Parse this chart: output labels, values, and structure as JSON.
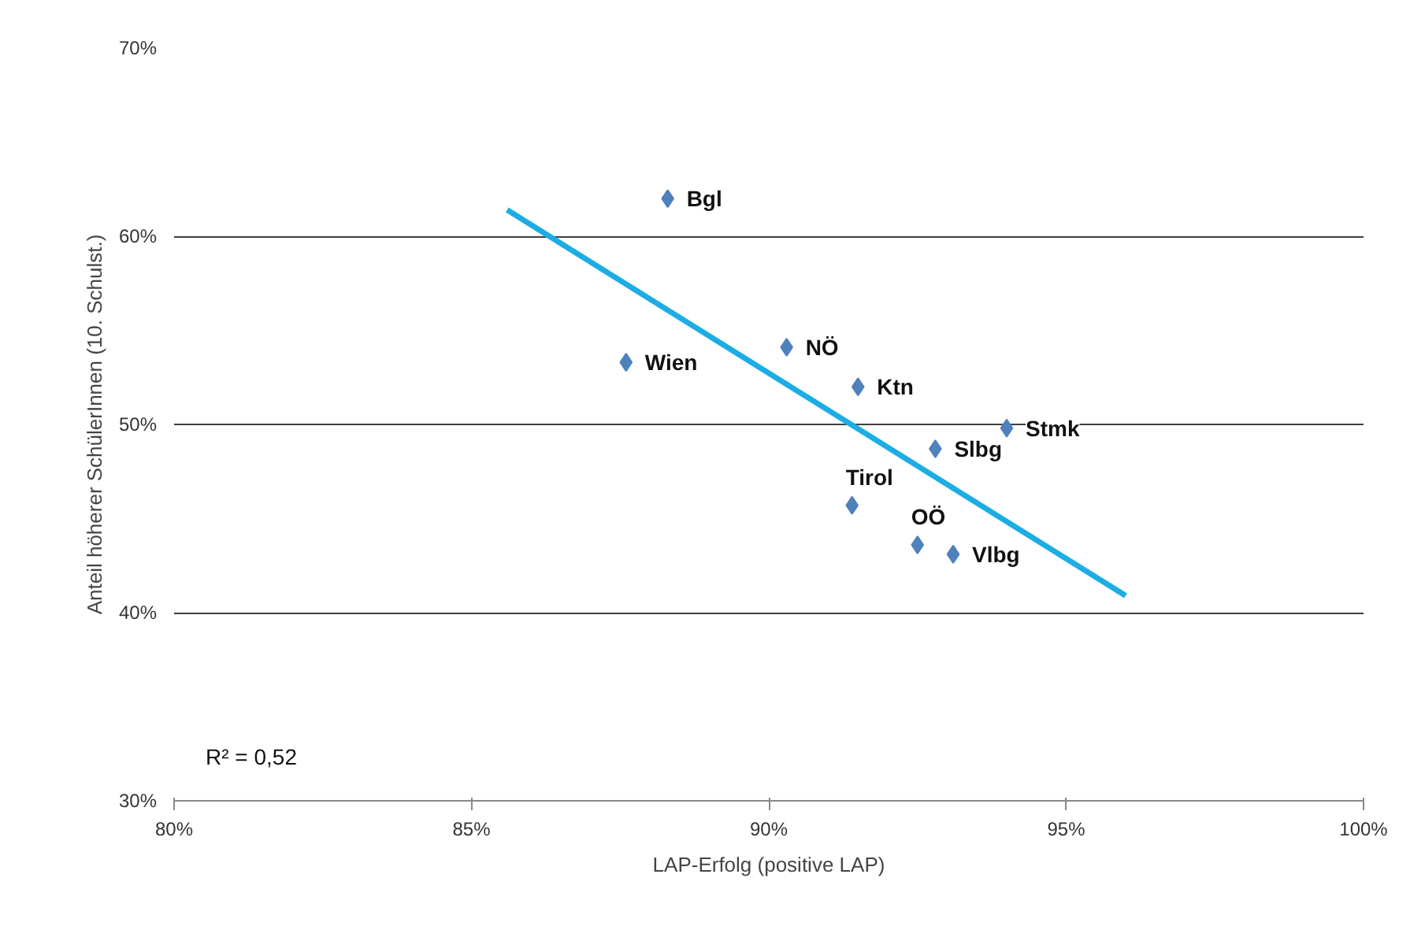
{
  "chart_data": {
    "type": "scatter",
    "xlabel": "LAP-Erfolg (positive LAP)",
    "ylabel": "Anteil höherer SchülerInnen (10. Schulst.)",
    "xlim": [
      80,
      100
    ],
    "ylim": [
      30,
      70
    ],
    "xticks": [
      {
        "value": 80,
        "label": "80%"
      },
      {
        "value": 85,
        "label": "85%"
      },
      {
        "value": 90,
        "label": "90%"
      },
      {
        "value": 95,
        "label": "95%"
      },
      {
        "value": 100,
        "label": "100%"
      }
    ],
    "yticks": [
      {
        "value": 30,
        "label": "30%"
      },
      {
        "value": 40,
        "label": "40%"
      },
      {
        "value": 50,
        "label": "50%"
      },
      {
        "value": 60,
        "label": "60%"
      },
      {
        "value": 70,
        "label": "70%"
      }
    ],
    "grid": "y",
    "series": [
      {
        "marker": "diamond",
        "color": "#4f81bd",
        "x": [
          88.3,
          87.6,
          90.3,
          91.5,
          94.0,
          92.8,
          91.4,
          92.5,
          93.1
        ],
        "values": [
          62.0,
          53.3,
          54.1,
          52.0,
          49.8,
          48.7,
          45.7,
          43.6,
          43.1
        ]
      },
      {
        "type": "line",
        "color": "#1cade4",
        "x": [
          85.6,
          96.0
        ],
        "values": [
          61.4,
          40.9
        ]
      }
    ],
    "annotations": [
      {
        "text": "Bgl",
        "x": 88.3,
        "y": 62.0
      },
      {
        "text": "Wien",
        "x": 87.6,
        "y": 53.3
      },
      {
        "text": "NÖ",
        "x": 90.3,
        "y": 54.1
      },
      {
        "text": "Ktn",
        "x": 91.5,
        "y": 52.0
      },
      {
        "text": "Stmk",
        "x": 94.0,
        "y": 49.8
      },
      {
        "text": "Slbg",
        "x": 92.8,
        "y": 48.7
      },
      {
        "text": "Tirol",
        "x": 91.4,
        "y": 45.7
      },
      {
        "text": "OÖ",
        "x": 92.5,
        "y": 43.6
      },
      {
        "text": "Vlbg",
        "x": 93.1,
        "y": 43.1
      },
      "R² = 0,52"
    ]
  }
}
